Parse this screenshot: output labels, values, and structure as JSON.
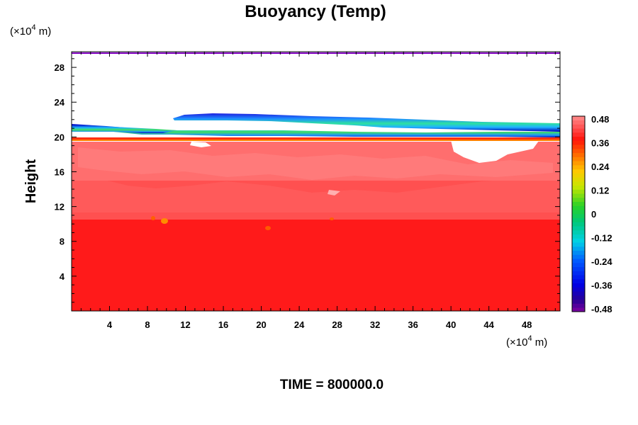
{
  "chart_data": {
    "type": "heatmap",
    "title": "Buoyancy (Temp)",
    "ylabel": "Height",
    "xlabel": "",
    "x_unit": "(×10",
    "x_unit_exp": "4",
    "x_unit_tail": " m)",
    "y_unit": "(×10",
    "y_unit_exp": "4",
    "y_unit_tail": " m)",
    "xlim": [
      0,
      51.5
    ],
    "ylim": [
      0,
      29.8
    ],
    "x_ticks": [
      4,
      8,
      12,
      16,
      20,
      24,
      28,
      32,
      36,
      40,
      44,
      48
    ],
    "x_tick_labels": [
      "4",
      "8",
      "12",
      "16",
      "20",
      "24",
      "28",
      "32",
      "36",
      "40",
      "44",
      "48"
    ],
    "y_ticks": [
      4,
      8,
      12,
      16,
      20,
      24,
      28
    ],
    "y_tick_labels": [
      "4",
      "8",
      "12",
      "16",
      "20",
      "24",
      "28"
    ],
    "colorbar": {
      "min": -0.48,
      "max": 0.48,
      "ticks": [
        0.48,
        0.36,
        0.24,
        0.12,
        0,
        -0.12,
        -0.24,
        -0.36,
        -0.48
      ],
      "tick_labels": [
        "0.48",
        "0.36",
        "0.24",
        "0.12",
        "0",
        "-0.12",
        "-0.24",
        "-0.36",
        "-0.48"
      ]
    },
    "regions": [
      {
        "name": "lower-warm",
        "value": 0.4,
        "color": "#ff1a1a",
        "y_range": [
          0,
          11
        ]
      },
      {
        "name": "mid-warm",
        "value": 0.44,
        "color": "#ff5858",
        "y_range": [
          11,
          15.5
        ]
      },
      {
        "name": "upper-warm",
        "value": 0.46,
        "color": "#ff6e6e",
        "y_range": [
          15.5,
          20
        ]
      },
      {
        "name": "cold-band-upper",
        "value": -0.3,
        "x_range": [
          11.5,
          51.5
        ],
        "y_range": [
          21.5,
          23.0
        ]
      },
      {
        "name": "cold-band-lower",
        "value": -0.3,
        "x_range": [
          0,
          51.5
        ],
        "y_range": [
          20.2,
          21.5
        ]
      }
    ],
    "grid": false,
    "legend": "colorbar-right"
  },
  "footer": {
    "time_label": "TIME = 800000.0"
  }
}
